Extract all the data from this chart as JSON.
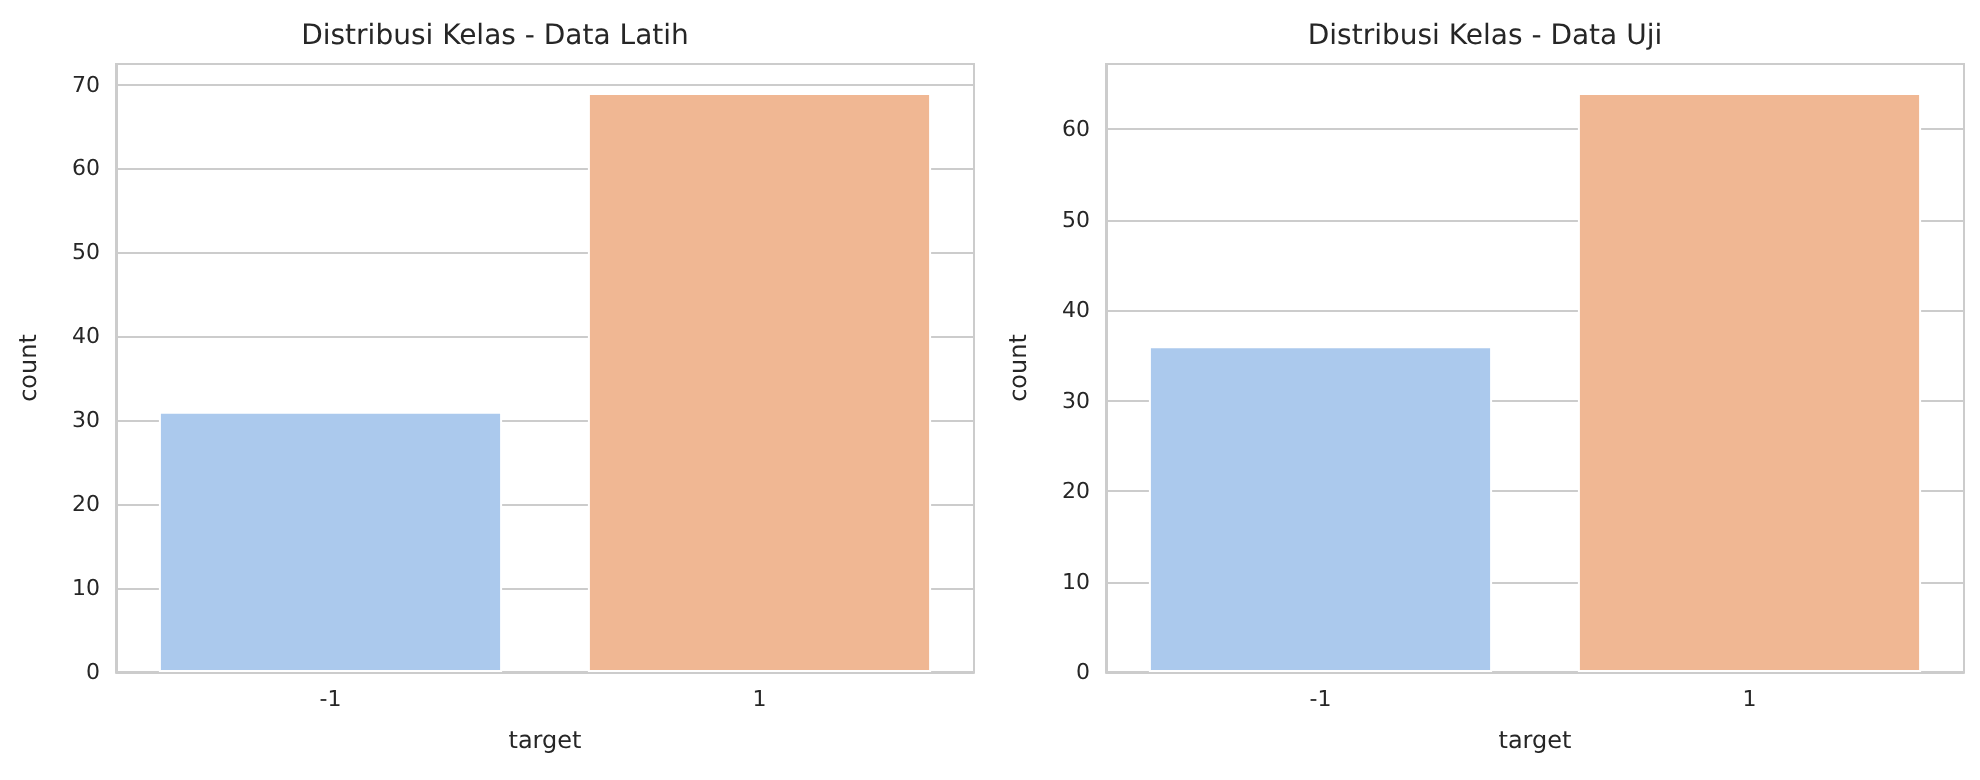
{
  "chart_data": [
    {
      "type": "bar",
      "title": "Distribusi Kelas - Data Latih",
      "xlabel": "target",
      "ylabel": "count",
      "categories": [
        "-1",
        "1"
      ],
      "values": [
        31,
        69
      ],
      "colors": [
        "#abc9ed",
        "#f0b793"
      ],
      "ylim": [
        0,
        72.45
      ],
      "yticks": [
        0,
        10,
        20,
        30,
        40,
        50,
        60,
        70
      ],
      "grid": "y"
    },
    {
      "type": "bar",
      "title": "Distribusi Kelas - Data Uji",
      "xlabel": "target",
      "ylabel": "count",
      "categories": [
        "-1",
        "1"
      ],
      "values": [
        36,
        64
      ],
      "colors": [
        "#abc9ed",
        "#f0b793"
      ],
      "ylim": [
        0,
        67.2
      ],
      "yticks": [
        0,
        10,
        20,
        30,
        40,
        50,
        60
      ],
      "grid": "y"
    }
  ]
}
